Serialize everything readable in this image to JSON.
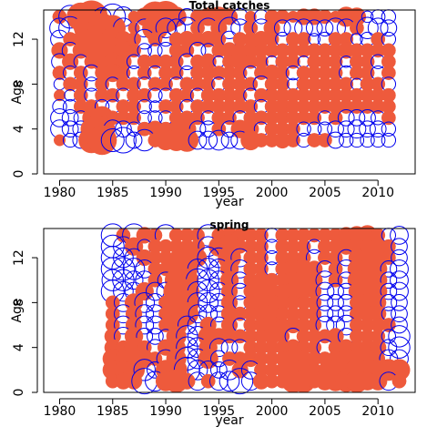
{
  "chart_data": [
    {
      "type": "scatter",
      "title": "Total catches",
      "xlabel": "year",
      "ylabel": "Age",
      "xlim": [
        1978.5,
        2013.5
      ],
      "ylim": [
        0,
        14.6
      ],
      "xticks": [
        1980,
        1985,
        1990,
        1995,
        2000,
        2005,
        2010
      ],
      "yticks": [
        0,
        4,
        8,
        12
      ],
      "years": [
        1980,
        2011
      ],
      "ages": [
        3,
        14
      ],
      "colors": {
        "positive": "#EE5A3C",
        "negative": "#0000EE"
      },
      "grid": false,
      "series": [
        {
          "age": 14,
          "values": [
            0.3,
            -0.8,
            1.2,
            1.6,
            -0.5,
            -1.0,
            -0.6,
            0.2,
            0.5,
            1.4,
            1.5,
            0.6,
            -0.4,
            0.3,
            0.5,
            0.6,
            0.4,
            -0.4,
            0.2,
            -0.3,
            0.3,
            0.3,
            0.2,
            0.4,
            0.4,
            0.3,
            0.2,
            0.6,
            0.5,
            -0.2,
            -0.3,
            -0.3
          ]
        },
        {
          "age": 13,
          "values": [
            -0.6,
            -0.8,
            0.3,
            1.8,
            1.3,
            1.0,
            -0.6,
            0.2,
            -0.5,
            1.0,
            -0.6,
            -0.5,
            -0.7,
            0.3,
            -0.6,
            0.4,
            -0.7,
            -0.5,
            0.3,
            -0.5,
            0.4,
            -0.4,
            -0.5,
            -0.5,
            -0.4,
            -0.4,
            -0.6,
            -0.5,
            0.3,
            -0.7,
            -0.6,
            -0.4
          ]
        },
        {
          "age": 12,
          "values": [
            -0.5,
            0.3,
            0.4,
            0.6,
            1.6,
            0.9,
            0.4,
            0.3,
            -0.6,
            0.3,
            -0.3,
            0.3,
            0.4,
            0.3,
            0.4,
            0.3,
            -0.4,
            0.3,
            0.3,
            0.4,
            0.3,
            -0.3,
            0.3,
            0.3,
            -0.2,
            -0.3,
            0.3,
            0.3,
            -0.2,
            -0.3,
            0.3,
            -0.3
          ]
        },
        {
          "age": 11,
          "values": [
            0.4,
            -0.4,
            0.4,
            0.5,
            0.8,
            1.0,
            0.6,
            0.3,
            -0.3,
            -0.3,
            -0.4,
            0.3,
            0.3,
            -0.4,
            -0.3,
            0.3,
            0.4,
            0.3,
            0.4,
            0.3,
            0.3,
            0.3,
            0.3,
            0.3,
            0.3,
            0.3,
            0.3,
            0.4,
            0.3,
            0.3,
            0.3,
            0.3
          ]
        },
        {
          "age": 10,
          "values": [
            -0.4,
            0.4,
            -0.3,
            0.3,
            0.6,
            0.5,
            0.4,
            -0.3,
            0.3,
            0.3,
            0.3,
            0.3,
            -0.4,
            0.3,
            0.4,
            -0.2,
            0.3,
            0.4,
            0.3,
            0.3,
            -0.2,
            0.3,
            0.3,
            -0.2,
            0.3,
            0.3,
            0.3,
            -0.2,
            0.3,
            0.3,
            -0.3,
            0.3
          ]
        },
        {
          "age": 9,
          "values": [
            0.3,
            -0.3,
            0.3,
            -0.4,
            0.3,
            0.5,
            0.3,
            -0.3,
            0.3,
            -0.3,
            0.3,
            0.3,
            -0.3,
            0.3,
            0.3,
            0.3,
            0.3,
            0.3,
            -0.3,
            0.3,
            0.4,
            0.3,
            -0.3,
            0.3,
            0.3,
            0.3,
            0.3,
            -0.3,
            0.3,
            0.3,
            -0.3,
            0.3
          ]
        },
        {
          "age": 8,
          "values": [
            -0.2,
            0.3,
            0.3,
            -0.3,
            0.3,
            -0.3,
            0.3,
            0.3,
            -0.3,
            0.3,
            0.3,
            -0.3,
            0.3,
            0.3,
            0.3,
            -0.3,
            0.3,
            0.3,
            0.3,
            -0.4,
            0.3,
            0.3,
            -0.2,
            0.3,
            0.3,
            0.3,
            0.3,
            0.3,
            -0.2,
            0.3,
            0.3,
            -0.3
          ]
        },
        {
          "age": 7,
          "values": [
            0.2,
            -0.2,
            0.3,
            -0.3,
            0.3,
            0.3,
            -0.3,
            0.3,
            0.3,
            -0.3,
            -0.3,
            0.3,
            0.3,
            -0.3,
            0.3,
            0.3,
            0.3,
            0.3,
            -0.3,
            0.3,
            0.3,
            0.3,
            0.3,
            0.3,
            0.3,
            0.3,
            0.3,
            0.3,
            0.3,
            0.3,
            0.3,
            0.3
          ]
        },
        {
          "age": 6,
          "values": [
            -0.3,
            -0.3,
            0.3,
            0.3,
            -0.3,
            -0.3,
            0.3,
            0.3,
            -0.3,
            -0.2,
            0.3,
            0.3,
            -0.3,
            0.3,
            0.3,
            0.3,
            0.3,
            0.3,
            0.3,
            -0.3,
            0.3,
            0.4,
            0.3,
            0.3,
            0.3,
            0.3,
            0.3,
            0.3,
            0.3,
            0.3,
            0.3,
            0.3
          ]
        },
        {
          "age": 5,
          "values": [
            -0.5,
            -0.4,
            -0.3,
            0.5,
            0.8,
            0.3,
            0.3,
            0.3,
            -0.3,
            -0.3,
            -0.3,
            0.3,
            0.3,
            0.3,
            -0.3,
            0.3,
            0.3,
            -0.3,
            0.3,
            0.3,
            0.3,
            0.3,
            0.3,
            0.3,
            0.3,
            -0.3,
            0.3,
            -0.4,
            -0.4,
            -0.4,
            -0.3,
            0.3
          ]
        },
        {
          "age": 4,
          "values": [
            -0.5,
            -0.4,
            -0.4,
            0.7,
            1.0,
            -0.5,
            -0.4,
            -0.3,
            0.3,
            0.4,
            0.3,
            0.4,
            0.5,
            -0.4,
            -0.4,
            0.3,
            -0.4,
            0.5,
            0.4,
            -0.3,
            0.3,
            0.3,
            0.3,
            -0.3,
            -0.3,
            -0.3,
            -0.4,
            -0.4,
            -0.5,
            -0.4,
            -0.4,
            -0.3
          ]
        },
        {
          "age": 3,
          "values": [
            0.2,
            -0.3,
            -0.4,
            1.0,
            1.3,
            -0.8,
            -1.0,
            -0.4,
            -0.7,
            0.3,
            0.6,
            0.7,
            0.8,
            -0.5,
            -0.5,
            -0.6,
            -0.4,
            -0.5,
            0.6,
            0.3,
            0.3,
            0.4,
            0.3,
            -0.3,
            0.3,
            0.3,
            -0.4,
            -0.3,
            -0.3,
            -0.3,
            -0.3,
            -0.3
          ]
        }
      ]
    },
    {
      "type": "scatter",
      "title": "spring",
      "xlabel": "year",
      "ylabel": "Age",
      "xlim": [
        1978.5,
        2013.5
      ],
      "ylim": [
        0,
        14.6
      ],
      "xticks": [
        1980,
        1985,
        1990,
        1995,
        2000,
        2005,
        2010
      ],
      "yticks": [
        0,
        4,
        8,
        12
      ],
      "years": [
        1985,
        2012
      ],
      "ages": [
        1,
        14
      ],
      "colors": {
        "positive": "#EE5A3C",
        "negative": "#0000EE"
      },
      "grid": false,
      "series": [
        {
          "age": 14,
          "values": [
            -0.8,
            0.3,
            -0.8,
            0.4,
            0.3,
            -0.7,
            0.3,
            0.3,
            0.3,
            -0.7,
            0.3,
            0.4,
            0.3,
            0.3,
            0.3,
            -0.3,
            0.3,
            0.3,
            0.3,
            0.3,
            0.3,
            0.3,
            0.4,
            0.5,
            0.6,
            0.3,
            -0.3,
            -0.5
          ]
        },
        {
          "age": 13,
          "values": [
            -0.8,
            -0.6,
            0.5,
            -0.3,
            0.3,
            0.3,
            0.3,
            0.3,
            0.3,
            -0.6,
            0.6,
            0.9,
            0.3,
            0.3,
            0.3,
            -0.3,
            0.3,
            0.3,
            0.3,
            -0.3,
            0.3,
            0.3,
            0.4,
            0.4,
            0.3,
            0.4,
            0.3,
            -0.4
          ]
        },
        {
          "age": 12,
          "values": [
            -0.8,
            -0.6,
            -0.5,
            0.4,
            0.3,
            0.3,
            0.3,
            0.6,
            0.5,
            -0.7,
            -0.6,
            0.8,
            -0.5,
            0.3,
            0.3,
            -0.3,
            0.3,
            0.3,
            0.3,
            -0.4,
            0.3,
            0.3,
            -0.4,
            0.4,
            0.4,
            0.6,
            0.3,
            -0.4
          ]
        },
        {
          "age": 11,
          "values": [
            -0.8,
            -0.8,
            -0.7,
            -0.5,
            0.3,
            0.3,
            0.5,
            0.7,
            -0.6,
            -0.7,
            -0.6,
            0.5,
            -0.5,
            0.3,
            0.3,
            -0.3,
            0.3,
            0.5,
            0.5,
            0.4,
            -0.4,
            0.3,
            -0.5,
            0.5,
            0.6,
            0.5,
            -0.4,
            -0.5
          ]
        },
        {
          "age": 10,
          "values": [
            -0.7,
            -0.7,
            -0.5,
            -0.5,
            0.3,
            -0.4,
            0.8,
            0.8,
            -0.8,
            -0.7,
            -0.5,
            0.5,
            -0.4,
            0.3,
            0.4,
            0.3,
            0.3,
            0.4,
            0.6,
            0.4,
            -0.5,
            0.3,
            -0.4,
            0.5,
            0.7,
            0.5,
            -0.4,
            -0.5
          ]
        },
        {
          "age": 9,
          "values": [
            -0.8,
            -0.6,
            -0.5,
            0.5,
            -0.5,
            -0.5,
            1.0,
            0.9,
            -0.6,
            -0.8,
            -0.5,
            0.4,
            -0.4,
            0.3,
            0.6,
            0.4,
            0.3,
            0.5,
            0.4,
            0.3,
            -0.5,
            -0.4,
            -0.4,
            0.4,
            0.6,
            0.5,
            -0.4,
            -0.5
          ]
        },
        {
          "age": 8,
          "values": [
            0.3,
            -0.5,
            0.5,
            -0.6,
            -0.5,
            0.3,
            1.0,
            0.9,
            -0.6,
            -0.6,
            -0.5,
            0.4,
            -0.3,
            0.3,
            0.5,
            0.4,
            0.4,
            0.3,
            0.3,
            0.3,
            -0.4,
            -0.4,
            -0.4,
            0.3,
            0.5,
            0.4,
            -0.4,
            -0.4
          ]
        },
        {
          "age": 7,
          "values": [
            0.3,
            -0.5,
            0.4,
            -0.5,
            -0.5,
            0.3,
            0.9,
            0.8,
            -0.5,
            -0.5,
            -0.4,
            0.4,
            0.3,
            0.3,
            0.4,
            0.5,
            0.3,
            0.3,
            0.3,
            0.3,
            -0.4,
            -0.4,
            -0.4,
            0.3,
            0.4,
            0.4,
            -0.3,
            -0.4
          ]
        },
        {
          "age": 6,
          "values": [
            0.3,
            -0.5,
            0.4,
            -0.5,
            -0.5,
            0.3,
            0.7,
            -0.5,
            -0.6,
            0.4,
            -0.4,
            0.4,
            -0.3,
            0.3,
            0.3,
            0.5,
            0.3,
            0.4,
            0.3,
            0.3,
            -0.5,
            -0.5,
            -0.6,
            0.3,
            0.3,
            0.3,
            0.3,
            -0.4
          ]
        },
        {
          "age": 5,
          "values": [
            0.4,
            -0.5,
            0.5,
            -0.4,
            -0.4,
            -0.3,
            0.6,
            -0.7,
            -0.6,
            0.6,
            0.4,
            0.3,
            0.3,
            0.3,
            0.3,
            0.4,
            0.3,
            -0.4,
            0.3,
            0.3,
            0.3,
            0.4,
            -0.4,
            0.3,
            0.3,
            0.3,
            -0.3,
            -0.7
          ]
        },
        {
          "age": 4,
          "values": [
            0.4,
            0.3,
            0.6,
            0.3,
            -0.4,
            0.4,
            0.5,
            -0.7,
            -0.6,
            0.5,
            -0.5,
            -0.4,
            -0.4,
            0.3,
            0.3,
            0.3,
            0.3,
            0.4,
            0.3,
            0.3,
            -0.4,
            0.3,
            0.4,
            0.3,
            0.4,
            0.4,
            -0.4,
            -0.7
          ]
        },
        {
          "age": 3,
          "values": [
            0.6,
            0.4,
            0.7,
            0.5,
            0.3,
            -0.5,
            0.6,
            -0.8,
            -0.6,
            0.6,
            -0.4,
            0.3,
            0.3,
            0.4,
            0.3,
            0.3,
            0.3,
            0.5,
            0.4,
            0.3,
            0.3,
            0.4,
            0.6,
            0.5,
            0.5,
            0.3,
            -0.5,
            -0.5
          ]
        },
        {
          "age": 2,
          "values": [
            0.6,
            0.5,
            0.7,
            -0.7,
            -0.4,
            0.6,
            0.7,
            -1.0,
            -0.6,
            -0.5,
            -0.4,
            -0.6,
            0.4,
            -0.5,
            0.3,
            0.3,
            0.3,
            0.8,
            0.8,
            0.3,
            0.3,
            0.7,
            0.8,
            0.8,
            0.6,
            0.6,
            0.7,
            0.7
          ]
        },
        {
          "age": 1,
          "values": [
            0.3,
            0.4,
            0.4,
            -1.0,
            -0.6,
            0.6,
            0.8,
            0.4,
            -0.5,
            0.3,
            -0.5,
            -0.6,
            -1.0,
            -0.5,
            0.4,
            0.3,
            0.3,
            0.8,
            0.8,
            0.3,
            0.5,
            0.6,
            0.7,
            0.8,
            0.5,
            0.5,
            -0.5,
            0.3
          ]
        }
      ]
    }
  ]
}
